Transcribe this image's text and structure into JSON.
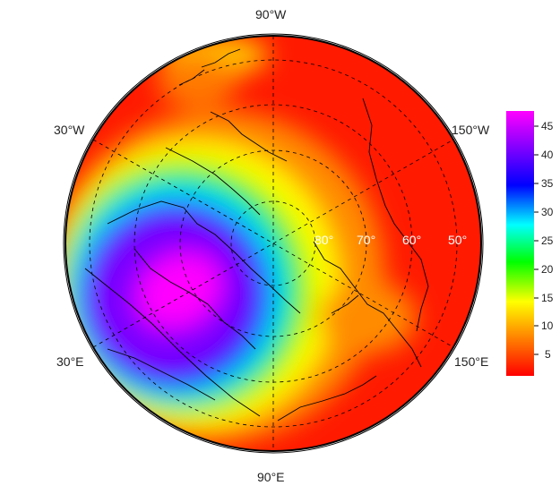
{
  "longitude_labels": {
    "top": "90°W",
    "upper_left": "30°W",
    "upper_right": "150°W",
    "lower_left": "30°E",
    "lower_right": "150°E",
    "bottom": "90°E"
  },
  "latitude_labels": [
    "80°",
    "70°",
    "60°",
    "50°"
  ],
  "colorbar": {
    "ticks": [
      "45",
      "40",
      "35",
      "30",
      "25",
      "20",
      "15",
      "10",
      "5"
    ],
    "min": 1,
    "max": 47,
    "colors": [
      "#ff0000",
      "#ff7f00",
      "#ffff00",
      "#00ff00",
      "#00ffff",
      "#0000ff",
      "#8000ff",
      "#ff00ff"
    ]
  }
}
